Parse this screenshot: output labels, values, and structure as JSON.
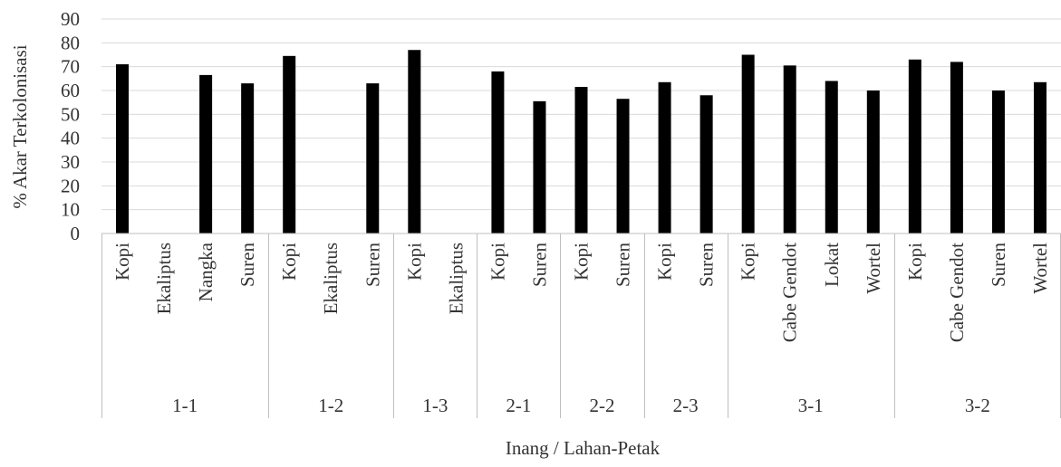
{
  "chart_data": {
    "type": "bar",
    "title": "",
    "xlabel": "Inang / Lahan-Petak",
    "ylabel": "% Akar Terkolonisasi",
    "ylim": [
      0,
      90
    ],
    "yticks": [
      0,
      10,
      20,
      30,
      40,
      50,
      60,
      70,
      80,
      90
    ],
    "grid": true,
    "legend": "none",
    "bar_color": "#000000",
    "groups": [
      {
        "label": "1-1",
        "categories": [
          "Kopi",
          "Ekaliptus",
          "Nangka",
          "Suren"
        ],
        "values": [
          71,
          0,
          66.5,
          63
        ]
      },
      {
        "label": "1-2",
        "categories": [
          "Kopi",
          "Ekaliptus",
          "Suren"
        ],
        "values": [
          74.5,
          0,
          63
        ]
      },
      {
        "label": "1-3",
        "categories": [
          "Kopi",
          "Ekaliptus"
        ],
        "values": [
          77,
          0
        ]
      },
      {
        "label": "2-1",
        "categories": [
          "Kopi",
          "Suren"
        ],
        "values": [
          68,
          55.5
        ]
      },
      {
        "label": "2-2",
        "categories": [
          "Kopi",
          "Suren"
        ],
        "values": [
          61.5,
          56.5
        ]
      },
      {
        "label": "2-3",
        "categories": [
          "Kopi",
          "Suren"
        ],
        "values": [
          63.5,
          58
        ]
      },
      {
        "label": "3-1",
        "categories": [
          "Kopi",
          "Cabe Gendot",
          "Lokat",
          "Wortel"
        ],
        "values": [
          75,
          70.5,
          64,
          60
        ]
      },
      {
        "label": "3-2",
        "categories": [
          "Kopi",
          "Cabe Gendot",
          "Suren",
          "Wortel"
        ],
        "values": [
          73,
          72,
          60,
          63.5
        ]
      }
    ]
  }
}
